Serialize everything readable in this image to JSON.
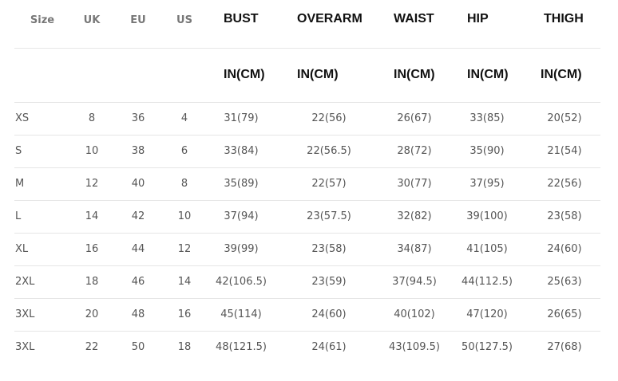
{
  "headers": {
    "size": "Size",
    "uk": "UK",
    "eu": "EU",
    "us": "US",
    "bust": "BUST",
    "overarm": "OVERARM",
    "waist": "WAIST",
    "hip": "HIP",
    "thigh": "THIGH",
    "unit": "IN(CM)"
  },
  "rows": [
    [
      "XS",
      "8",
      "36",
      "4",
      "31(79)",
      "22(56)",
      "26(67)",
      "33(85)",
      "20(52)"
    ],
    [
      "S",
      "10",
      "38",
      "6",
      "33(84)",
      "22(56.5)",
      "28(72)",
      "35(90)",
      "21(54)"
    ],
    [
      "M",
      "12",
      "40",
      "8",
      "35(89)",
      "22(57)",
      "30(77)",
      "37(95)",
      "22(56)"
    ],
    [
      "L",
      "14",
      "42",
      "10",
      "37(94)",
      "23(57.5)",
      "32(82)",
      "39(100)",
      "23(58)"
    ],
    [
      "XL",
      "16",
      "44",
      "12",
      "39(99)",
      "23(58)",
      "34(87)",
      "41(105)",
      "24(60)"
    ],
    [
      "2XL",
      "18",
      "46",
      "14",
      "42(106.5)",
      "23(59)",
      "37(94.5)",
      "44(112.5)",
      "25(63)"
    ],
    [
      "3XL",
      "20",
      "48",
      "16",
      "45(114)",
      "24(60)",
      "40(102)",
      "47(120)",
      "26(65)"
    ],
    [
      "3XL",
      "22",
      "50",
      "18",
      "48(121.5)",
      "24(61)",
      "43(109.5)",
      "50(127.5)",
      "27(68)"
    ]
  ]
}
